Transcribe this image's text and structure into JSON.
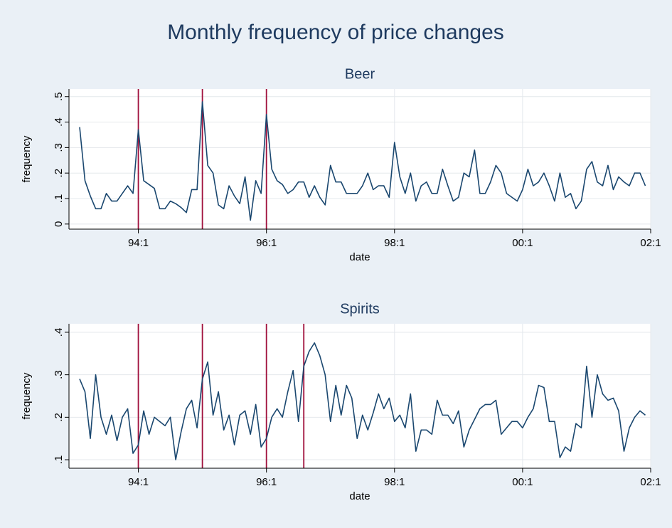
{
  "title": "Monthly frequency of price changes",
  "chart_data": [
    {
      "type": "line",
      "title": "Beer",
      "x_label": "date",
      "y_label": "frequency",
      "x": [
        "1993-02",
        "1993-03",
        "1993-04",
        "1993-05",
        "1993-06",
        "1993-07",
        "1993-08",
        "1993-09",
        "1993-10",
        "1993-11",
        "1993-12",
        "1994-01",
        "1994-02",
        "1994-03",
        "1994-04",
        "1994-05",
        "1994-06",
        "1994-07",
        "1994-08",
        "1994-09",
        "1994-10",
        "1994-11",
        "1994-12",
        "1995-01",
        "1995-02",
        "1995-03",
        "1995-04",
        "1995-05",
        "1995-06",
        "1995-07",
        "1995-08",
        "1995-09",
        "1995-10",
        "1995-11",
        "1995-12",
        "1996-01",
        "1996-02",
        "1996-03",
        "1996-04",
        "1996-05",
        "1996-06",
        "1996-07",
        "1996-08",
        "1996-09",
        "1996-10",
        "1996-11",
        "1996-12",
        "1997-01",
        "1997-02",
        "1997-03",
        "1997-04",
        "1997-05",
        "1997-06",
        "1997-07",
        "1997-08",
        "1997-09",
        "1997-10",
        "1997-11",
        "1997-12",
        "1998-01",
        "1998-02",
        "1998-03",
        "1998-04",
        "1998-05",
        "1998-06",
        "1998-07",
        "1998-08",
        "1998-09",
        "1998-10",
        "1998-11",
        "1998-12",
        "1999-01",
        "1999-02",
        "1999-03",
        "1999-04",
        "1999-05",
        "1999-06",
        "1999-07",
        "1999-08",
        "1999-09",
        "1999-10",
        "1999-11",
        "1999-12",
        "2000-01",
        "2000-02",
        "2000-03",
        "2000-04",
        "2000-05",
        "2000-06",
        "2000-07",
        "2000-08",
        "2000-09",
        "2000-10",
        "2000-11",
        "2000-12",
        "2001-01",
        "2001-02",
        "2001-03",
        "2001-04",
        "2001-05",
        "2001-06",
        "2001-07",
        "2001-08",
        "2001-09",
        "2001-10",
        "2001-11",
        "2001-12"
      ],
      "values": [
        0.38,
        0.17,
        0.11,
        0.06,
        0.06,
        0.12,
        0.09,
        0.09,
        0.12,
        0.15,
        0.12,
        0.37,
        0.17,
        0.155,
        0.14,
        0.06,
        0.06,
        0.09,
        0.08,
        0.065,
        0.045,
        0.135,
        0.135,
        0.48,
        0.23,
        0.2,
        0.075,
        0.06,
        0.15,
        0.11,
        0.08,
        0.185,
        0.015,
        0.17,
        0.12,
        0.43,
        0.215,
        0.17,
        0.155,
        0.12,
        0.135,
        0.165,
        0.165,
        0.105,
        0.15,
        0.105,
        0.075,
        0.23,
        0.165,
        0.165,
        0.12,
        0.12,
        0.12,
        0.15,
        0.2,
        0.135,
        0.15,
        0.15,
        0.105,
        0.32,
        0.185,
        0.12,
        0.2,
        0.09,
        0.15,
        0.165,
        0.12,
        0.12,
        0.215,
        0.15,
        0.09,
        0.105,
        0.2,
        0.185,
        0.29,
        0.12,
        0.12,
        0.165,
        0.23,
        0.2,
        0.12,
        0.105,
        0.09,
        0.135,
        0.215,
        0.15,
        0.165,
        0.2,
        0.15,
        0.09,
        0.2,
        0.105,
        0.12,
        0.06,
        0.09,
        0.215,
        0.245,
        0.165,
        0.15,
        0.23,
        0.135,
        0.185,
        0.165,
        0.15,
        0.2,
        0.2,
        0.15
      ],
      "color": "#1a476f",
      "xlim": [
        "1992-12",
        "2002-01"
      ],
      "xticks": [
        {
          "value": "1994-01",
          "label": "94:1"
        },
        {
          "value": "1996-01",
          "label": "96:1"
        },
        {
          "value": "1998-01",
          "label": "98:1"
        },
        {
          "value": "2000-01",
          "label": "00:1"
        },
        {
          "value": "2002-01",
          "label": "02:1"
        }
      ],
      "ylim": [
        -0.02,
        0.53
      ],
      "yticks": [
        0,
        {
          "value": 0.1,
          "label": ".1"
        },
        {
          "value": 0.2,
          "label": ".2"
        },
        {
          "value": 0.3,
          "label": ".3"
        },
        {
          "value": 0.4,
          "label": ".4"
        },
        {
          "value": 0.5,
          "label": ".5"
        }
      ],
      "grid": true,
      "vlines": [
        "1994-01",
        "1995-01",
        "1996-01"
      ],
      "vline_color": "#a0103c"
    },
    {
      "type": "line",
      "title": "Spirits",
      "x_label": "date",
      "y_label": "frequency",
      "x": [
        "1993-02",
        "1993-03",
        "1993-04",
        "1993-05",
        "1993-06",
        "1993-07",
        "1993-08",
        "1993-09",
        "1993-10",
        "1993-11",
        "1993-12",
        "1994-01",
        "1994-02",
        "1994-03",
        "1994-04",
        "1994-05",
        "1994-06",
        "1994-07",
        "1994-08",
        "1994-09",
        "1994-10",
        "1994-11",
        "1994-12",
        "1995-01",
        "1995-02",
        "1995-03",
        "1995-04",
        "1995-05",
        "1995-06",
        "1995-07",
        "1995-08",
        "1995-09",
        "1995-10",
        "1995-11",
        "1995-12",
        "1996-01",
        "1996-02",
        "1996-03",
        "1996-04",
        "1996-05",
        "1996-06",
        "1996-07",
        "1996-08",
        "1996-09",
        "1996-10",
        "1996-11",
        "1996-12",
        "1997-01",
        "1997-02",
        "1997-03",
        "1997-04",
        "1997-05",
        "1997-06",
        "1997-07",
        "1997-08",
        "1997-09",
        "1997-10",
        "1997-11",
        "1997-12",
        "1998-01",
        "1998-02",
        "1998-03",
        "1998-04",
        "1998-05",
        "1998-06",
        "1998-07",
        "1998-08",
        "1998-09",
        "1998-10",
        "1998-11",
        "1998-12",
        "1999-01",
        "1999-02",
        "1999-03",
        "1999-04",
        "1999-05",
        "1999-06",
        "1999-07",
        "1999-08",
        "1999-09",
        "1999-10",
        "1999-11",
        "1999-12",
        "2000-01",
        "2000-02",
        "2000-03",
        "2000-04",
        "2000-05",
        "2000-06",
        "2000-07",
        "2000-08",
        "2000-09",
        "2000-10",
        "2000-11",
        "2000-12",
        "2001-01",
        "2001-02",
        "2001-03",
        "2001-04",
        "2001-05",
        "2001-06",
        "2001-07",
        "2001-08",
        "2001-09",
        "2001-10",
        "2001-11",
        "2001-12"
      ],
      "values": [
        0.29,
        0.26,
        0.15,
        0.3,
        0.2,
        0.16,
        0.205,
        0.145,
        0.2,
        0.22,
        0.115,
        0.135,
        0.215,
        0.16,
        0.2,
        0.19,
        0.18,
        0.2,
        0.1,
        0.165,
        0.22,
        0.24,
        0.175,
        0.29,
        0.33,
        0.205,
        0.26,
        0.17,
        0.205,
        0.135,
        0.205,
        0.215,
        0.16,
        0.23,
        0.13,
        0.15,
        0.2,
        0.22,
        0.2,
        0.26,
        0.31,
        0.19,
        0.32,
        0.355,
        0.375,
        0.345,
        0.3,
        0.19,
        0.275,
        0.205,
        0.275,
        0.245,
        0.15,
        0.205,
        0.17,
        0.21,
        0.255,
        0.22,
        0.245,
        0.19,
        0.205,
        0.175,
        0.255,
        0.12,
        0.17,
        0.17,
        0.16,
        0.24,
        0.205,
        0.205,
        0.185,
        0.215,
        0.13,
        0.17,
        0.195,
        0.22,
        0.23,
        0.23,
        0.24,
        0.16,
        0.175,
        0.19,
        0.19,
        0.175,
        0.2,
        0.22,
        0.275,
        0.27,
        0.19,
        0.19,
        0.105,
        0.13,
        0.12,
        0.185,
        0.175,
        0.32,
        0.2,
        0.3,
        0.255,
        0.24,
        0.245,
        0.215,
        0.12,
        0.175,
        0.2,
        0.215,
        0.205
      ],
      "color": "#1a476f",
      "xlim": [
        "1992-12",
        "2002-01"
      ],
      "xticks": [
        {
          "value": "1994-01",
          "label": "94:1"
        },
        {
          "value": "1996-01",
          "label": "96:1"
        },
        {
          "value": "1998-01",
          "label": "98:1"
        },
        {
          "value": "2000-01",
          "label": "00:1"
        },
        {
          "value": "2002-01",
          "label": "02:1"
        }
      ],
      "ylim": [
        0.08,
        0.42
      ],
      "yticks": [
        {
          "value": 0.1,
          "label": ".1"
        },
        {
          "value": 0.2,
          "label": ".2"
        },
        {
          "value": 0.3,
          "label": ".3"
        },
        {
          "value": 0.4,
          "label": ".4"
        }
      ],
      "grid": true,
      "vlines": [
        "1994-01",
        "1995-01",
        "1996-01",
        "1996-08"
      ],
      "vline_color": "#a0103c"
    }
  ]
}
